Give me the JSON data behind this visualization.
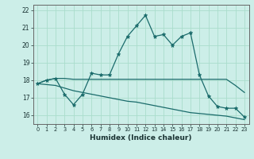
{
  "xlabel": "Humidex (Indice chaleur)",
  "background_color": "#cceee8",
  "grid_color": "#aaddcc",
  "line_color": "#1a6b6b",
  "x_values": [
    0,
    1,
    2,
    3,
    4,
    5,
    6,
    7,
    8,
    9,
    10,
    11,
    12,
    13,
    14,
    15,
    16,
    17,
    18,
    19,
    20,
    21,
    22,
    23
  ],
  "line1": [
    17.8,
    18.0,
    18.1,
    17.2,
    16.6,
    17.2,
    18.4,
    18.3,
    18.3,
    19.5,
    20.5,
    21.1,
    21.7,
    20.5,
    20.6,
    20.0,
    20.5,
    20.7,
    18.3,
    17.1,
    16.5,
    16.4,
    16.4,
    15.9
  ],
  "line2": [
    17.8,
    18.0,
    18.1,
    18.1,
    18.05,
    18.05,
    18.05,
    18.05,
    18.05,
    18.05,
    18.05,
    18.05,
    18.05,
    18.05,
    18.05,
    18.05,
    18.05,
    18.05,
    18.05,
    18.05,
    18.05,
    18.05,
    17.7,
    17.3
  ],
  "line3": [
    17.8,
    17.75,
    17.7,
    17.55,
    17.4,
    17.3,
    17.2,
    17.1,
    17.0,
    16.9,
    16.8,
    16.75,
    16.65,
    16.55,
    16.45,
    16.35,
    16.25,
    16.15,
    16.1,
    16.05,
    16.0,
    15.95,
    15.85,
    15.75
  ],
  "ylim": [
    15.5,
    22.3
  ],
  "xlim": [
    -0.5,
    23.5
  ],
  "yticks": [
    16,
    17,
    18,
    19,
    20,
    21,
    22
  ],
  "xticks": [
    0,
    1,
    2,
    3,
    4,
    5,
    6,
    7,
    8,
    9,
    10,
    11,
    12,
    13,
    14,
    15,
    16,
    17,
    18,
    19,
    20,
    21,
    22,
    23
  ]
}
